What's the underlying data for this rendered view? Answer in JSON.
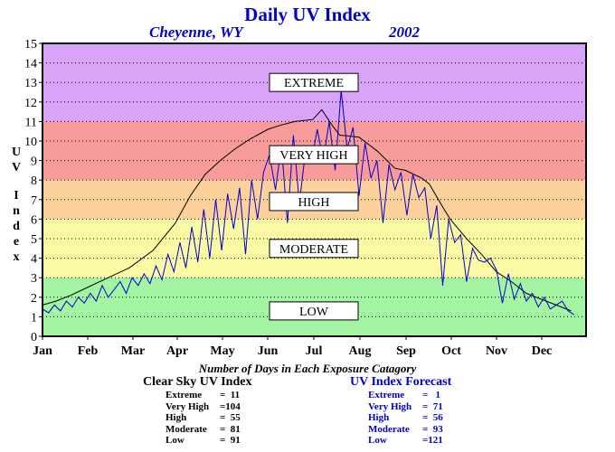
{
  "chart_data": {
    "type": "line",
    "title": "Daily UV Index",
    "subtitle_location": "Cheyenne, WY",
    "subtitle_year": "2002",
    "ylabel": "UV Index",
    "ylim": [
      0,
      15
    ],
    "yticks": [
      0,
      1,
      2,
      3,
      4,
      5,
      6,
      7,
      8,
      9,
      10,
      11,
      12,
      13,
      14,
      15
    ],
    "x_ticks": [
      "Jan",
      "Feb",
      "Mar",
      "Apr",
      "May",
      "Jun",
      "Jul",
      "Aug",
      "Sep",
      "Oct",
      "Nov",
      "Dec"
    ],
    "xlim_days": [
      1,
      365
    ],
    "bands": [
      {
        "label": "LOW",
        "from": 0,
        "to": 3,
        "color": "#a3f5a3"
      },
      {
        "label": "MODERATE",
        "from": 3,
        "to": 6,
        "color": "#fafaa5"
      },
      {
        "label": "HIGH",
        "from": 6,
        "to": 8,
        "color": "#fcd19c"
      },
      {
        "label": "VERY HIGH",
        "from": 8,
        "to": 11,
        "color": "#f79b9b"
      },
      {
        "label": "EXTREME",
        "from": 11,
        "to": 15,
        "color": "#d9a3f7"
      }
    ],
    "series": [
      {
        "name": "Clear Sky UV Index",
        "color": "#000000",
        "x_days": [
          1,
          10,
          20,
          31,
          45,
          59,
          75,
          90,
          100,
          110,
          120,
          130,
          140,
          152,
          160,
          170,
          182,
          188,
          195,
          200,
          213,
          225,
          237,
          244,
          255,
          260,
          270,
          274,
          285,
          295,
          305,
          315,
          325,
          335,
          345,
          355
        ],
        "values": [
          1.6,
          1.8,
          2.1,
          2.5,
          3.0,
          3.5,
          4.4,
          5.8,
          7.2,
          8.3,
          9.0,
          9.6,
          10.1,
          10.6,
          10.8,
          11.0,
          11.1,
          11.6,
          10.8,
          10.3,
          10.2,
          9.5,
          8.6,
          8.5,
          8.1,
          7.8,
          6.5,
          6.0,
          5.0,
          4.2,
          3.3,
          2.8,
          2.2,
          1.9,
          1.6,
          1.3
        ]
      },
      {
        "name": "UV Index Forecast",
        "color": "#0000cc",
        "x_days": [
          1,
          5,
          9,
          13,
          17,
          21,
          25,
          29,
          33,
          37,
          41,
          45,
          49,
          53,
          57,
          61,
          65,
          69,
          73,
          77,
          81,
          85,
          89,
          93,
          97,
          101,
          105,
          109,
          113,
          117,
          121,
          125,
          129,
          133,
          137,
          141,
          145,
          149,
          153,
          157,
          161,
          165,
          169,
          173,
          177,
          181,
          185,
          189,
          193,
          197,
          201,
          205,
          209,
          213,
          217,
          221,
          225,
          229,
          233,
          237,
          241,
          245,
          249,
          253,
          257,
          261,
          265,
          269,
          273,
          277,
          281,
          285,
          289,
          293,
          297,
          301,
          305,
          309,
          313,
          317,
          321,
          325,
          329,
          333,
          337,
          341,
          345,
          349,
          353,
          357
        ],
        "values": [
          1.4,
          1.2,
          1.6,
          1.3,
          1.8,
          1.5,
          2.0,
          1.7,
          2.2,
          1.8,
          2.6,
          2.0,
          2.4,
          2.8,
          2.2,
          3.0,
          2.6,
          3.2,
          2.7,
          3.6,
          2.9,
          4.2,
          3.3,
          4.8,
          3.5,
          5.6,
          3.8,
          6.5,
          4.0,
          7.0,
          4.4,
          7.3,
          5.5,
          7.6,
          4.2,
          8.0,
          6.0,
          8.4,
          9.3,
          7.5,
          9.8,
          5.8,
          10.3,
          6.8,
          9.4,
          8.9,
          10.6,
          9.0,
          11.0,
          8.5,
          12.6,
          9.6,
          10.7,
          7.2,
          9.9,
          8.1,
          9.0,
          5.8,
          8.8,
          7.5,
          8.4,
          6.2,
          8.3,
          7.1,
          7.6,
          5.0,
          6.7,
          2.6,
          6.0,
          4.8,
          5.2,
          2.8,
          4.5,
          3.9,
          3.8,
          4.0,
          3.4,
          1.7,
          3.2,
          1.9,
          2.7,
          1.8,
          2.2,
          1.5,
          2.0,
          1.4,
          1.6,
          1.8,
          1.3,
          1.1
        ]
      }
    ]
  },
  "counts": {
    "title": "Number of Days in Each Exposure Catagory",
    "clear": {
      "title": "Clear Sky UV Index",
      "rows": [
        {
          "label": "Extreme",
          "value": "=  11"
        },
        {
          "label": "Very High",
          "value": "=104"
        },
        {
          "label": "High",
          "value": "=  55"
        },
        {
          "label": "Moderate",
          "value": "=  81"
        },
        {
          "label": "Low",
          "value": "=  91"
        }
      ]
    },
    "forecast": {
      "title": "UV Index Forecast",
      "rows": [
        {
          "label": "Extreme",
          "value": "=   1"
        },
        {
          "label": "Very High",
          "value": "=  71"
        },
        {
          "label": "High",
          "value": "=  56"
        },
        {
          "label": "Moderate",
          "value": "=  93"
        },
        {
          "label": "Low",
          "value": "=121"
        }
      ]
    }
  }
}
